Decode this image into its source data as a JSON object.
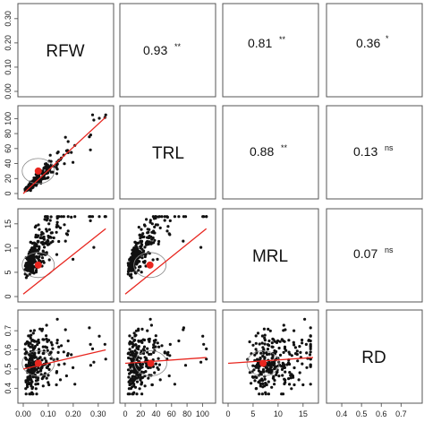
{
  "chart_data": {
    "type": "scatter-matrix",
    "variables": [
      "RFW",
      "TRL",
      "MRL",
      "RD"
    ],
    "colors": {
      "points": "#111111",
      "fit_line": "#e8261f",
      "centroid": "#e8261f",
      "ellipse": "#888888"
    },
    "axis_ticks": {
      "RFW_x": [
        "0.00",
        "0.10",
        "0.20",
        "0.30"
      ],
      "TRL_x": [
        "0",
        "20",
        "40",
        "60",
        "80",
        "100"
      ],
      "MRL_x": [
        "0",
        "5",
        "10",
        "15"
      ],
      "RD_x": [
        "0.4",
        "0.5",
        "0.6",
        "0.7"
      ],
      "RFW_y": [
        "0.00",
        "0.10",
        "0.20",
        "0.30"
      ],
      "TRL_y": [
        "0",
        "20",
        "40",
        "60",
        "80",
        "100"
      ],
      "MRL_y": [
        "0",
        "5",
        "10",
        "15"
      ],
      "RD_y": [
        "0.4",
        "0.5",
        "0.6",
        "0.7"
      ]
    },
    "ranges": {
      "RFW": [
        0,
        0.34
      ],
      "TRL": [
        0,
        110
      ],
      "MRL": [
        0,
        17
      ],
      "RD": [
        0.35,
        0.78
      ]
    },
    "correlations": [
      {
        "row": "RFW",
        "col": "TRL",
        "value": "0.93",
        "sig": "**"
      },
      {
        "row": "RFW",
        "col": "MRL",
        "value": "0.81",
        "sig": "**"
      },
      {
        "row": "RFW",
        "col": "RD",
        "value": "0.36",
        "sig": "*"
      },
      {
        "row": "TRL",
        "col": "MRL",
        "value": "0.88",
        "sig": "**"
      },
      {
        "row": "TRL",
        "col": "RD",
        "value": "0.13",
        "sig": "ns"
      },
      {
        "row": "MRL",
        "col": "RD",
        "value": "0.07",
        "sig": "ns"
      }
    ],
    "scatter_panels": [
      {
        "x": "RFW",
        "y": "TRL",
        "fit": [
          [
            0.0,
            0
          ],
          [
            0.33,
            102
          ]
        ],
        "centroid": [
          0.06,
          30
        ]
      },
      {
        "x": "RFW",
        "y": "MRL",
        "fit": [
          [
            0.0,
            0.5
          ],
          [
            0.33,
            14
          ]
        ],
        "centroid": [
          0.06,
          6.5
        ]
      },
      {
        "x": "TRL",
        "y": "MRL",
        "fit": [
          [
            0,
            0.5
          ],
          [
            105,
            14
          ]
        ],
        "centroid": [
          32,
          6.5
        ]
      },
      {
        "x": "RFW",
        "y": "RD",
        "fit": [
          [
            0.0,
            0.5
          ],
          [
            0.33,
            0.6
          ]
        ],
        "centroid": [
          0.06,
          0.53
        ]
      },
      {
        "x": "TRL",
        "y": "RD",
        "fit": [
          [
            0,
            0.53
          ],
          [
            105,
            0.56
          ]
        ],
        "centroid": [
          33,
          0.53
        ]
      },
      {
        "x": "MRL",
        "y": "RD",
        "fit": [
          [
            0,
            0.53
          ],
          [
            17,
            0.56
          ]
        ],
        "centroid": [
          7,
          0.53
        ]
      }
    ]
  }
}
